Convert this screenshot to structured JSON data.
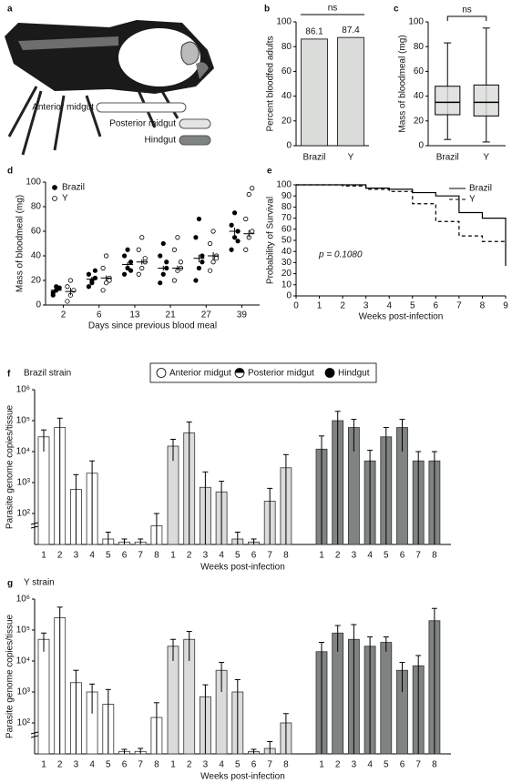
{
  "illustration": {
    "panel_label": "a",
    "labels": [
      "Anterior midgut",
      "Posterior midgut",
      "Hindgut"
    ]
  },
  "chart_data": [
    {
      "panel_label": "b",
      "type": "bar",
      "ylabel": "Percent bloodfed adults",
      "categories": [
        "Brazil",
        "Y"
      ],
      "values": [
        86.1,
        87.4
      ],
      "color": "#d9dcd9",
      "ylim": [
        0,
        100
      ],
      "yticks": [
        0,
        20,
        40,
        60,
        80,
        100
      ],
      "annotation": "ns"
    },
    {
      "panel_label": "c",
      "type": "box",
      "ylabel": "Mass of bloodmeal (mg)",
      "categories": [
        "Brazil",
        "Y"
      ],
      "values": [
        {
          "min": 5,
          "q1": 25,
          "median": 35,
          "q3": 48,
          "max": 83
        },
        {
          "min": 3,
          "q1": 24,
          "median": 35,
          "q3": 49,
          "max": 95
        }
      ],
      "color": "#d9dcd9",
      "ylim": [
        0,
        100
      ],
      "yticks": [
        0,
        20,
        40,
        60,
        80,
        100
      ],
      "annotation": "ns"
    },
    {
      "panel_label": "d",
      "type": "dot",
      "ylabel": "Mass of bloodmeal (mg)",
      "xlabel": "Days since previous blood meal",
      "categories": [
        "2",
        "6",
        "13",
        "21",
        "27",
        "39"
      ],
      "ylim": [
        0,
        100
      ],
      "yticks": [
        0,
        20,
        40,
        60,
        80,
        100
      ],
      "legend": "upper left",
      "series": [
        {
          "name": "Brazil",
          "marker": "filled",
          "values": [
            12,
            21,
            33,
            30,
            38,
            60
          ],
          "errors": [
            2,
            2,
            2,
            2,
            3,
            3
          ],
          "points": [
            [
              8,
              12,
              14,
              10,
              15
            ],
            [
              15,
              18,
              22,
              25,
              20,
              28
            ],
            [
              25,
              30,
              35,
              40,
              45,
              28
            ],
            [
              18,
              25,
              30,
              40,
              50,
              35
            ],
            [
              20,
              30,
              40,
              55,
              70,
              35
            ],
            [
              45,
              55,
              60,
              65,
              75,
              52
            ]
          ]
        },
        {
          "name": "Y",
          "marker": "open",
          "values": [
            11,
            22,
            35,
            30,
            40,
            58
          ],
          "errors": [
            3,
            2,
            2,
            2,
            3,
            3
          ],
          "points": [
            [
              3,
              8,
              12,
              15,
              20
            ],
            [
              12,
              18,
              22,
              30,
              40,
              20
            ],
            [
              25,
              30,
              38,
              45,
              55,
              35
            ],
            [
              20,
              28,
              35,
              45,
              55,
              30
            ],
            [
              28,
              35,
              40,
              50,
              60,
              38
            ],
            [
              45,
              55,
              60,
              70,
              90,
              95
            ]
          ]
        }
      ]
    },
    {
      "panel_label": "e",
      "type": "step",
      "ylabel": "Probability of Survival",
      "xlabel": "Weeks post-infection",
      "x": [
        0,
        1,
        2,
        3,
        4,
        5,
        6,
        7,
        8,
        9
      ],
      "xlim": [
        0,
        9
      ],
      "xticks": [
        0,
        1,
        2,
        3,
        4,
        5,
        6,
        7,
        8,
        9
      ],
      "ylim": [
        0,
        100
      ],
      "yticks": [
        0,
        10,
        20,
        30,
        40,
        50,
        60,
        70,
        80,
        90,
        100
      ],
      "legend": "upper right",
      "annotation": "p = 0.1080",
      "series": [
        {
          "name": "Brazil",
          "line_style": "solid",
          "values": [
            100,
            100,
            100,
            97,
            96,
            93,
            90,
            75,
            70,
            27
          ]
        },
        {
          "name": "Y",
          "line_style": "dashed",
          "values": [
            100,
            100,
            99,
            96,
            94,
            83,
            67,
            54,
            49,
            48
          ]
        }
      ]
    },
    {
      "panel_label": "f",
      "type": "log_bar",
      "title": "Brazil strain",
      "ylabel": "Parasite genome copies/tissue",
      "xlabel": "Weeks post-infection",
      "categories": [
        "1",
        "2",
        "3",
        "4",
        "5",
        "6",
        "7",
        "8"
      ],
      "log_scale": true,
      "ylim": [
        10,
        1000000
      ],
      "yticks": [
        {
          "value": 100,
          "label": "10²"
        },
        {
          "value": 1000,
          "label": "10³"
        },
        {
          "value": 10000,
          "label": "10⁴"
        },
        {
          "value": 100000,
          "label": "10⁵"
        },
        {
          "value": 1000000,
          "label": "10⁶"
        }
      ],
      "legend": true,
      "series": [
        {
          "name": "Anterior midgut",
          "marker": "open",
          "color": "#ffffff",
          "values": [
            30000,
            60000,
            600,
            2000,
            15,
            12,
            12,
            40
          ],
          "errors": [
            20000,
            60000,
            1200,
            3000,
            10,
            3,
            3,
            60
          ]
        },
        {
          "name": "Posterior midgut",
          "marker": "half",
          "color": "#d9dcd9",
          "values": [
            15000,
            40000,
            700,
            500,
            15,
            12,
            250,
            3000
          ],
          "errors": [
            10000,
            50000,
            1500,
            600,
            10,
            3,
            400,
            5000
          ]
        },
        {
          "name": "Hindgut",
          "marker": "filled",
          "color": "#7f8381",
          "values": [
            12000,
            100000,
            60000,
            5000,
            30000,
            60000,
            5000,
            5000
          ],
          "errors": [
            20000,
            100000,
            50000,
            6000,
            30000,
            50000,
            5000,
            5000
          ]
        }
      ]
    },
    {
      "panel_label": "g",
      "type": "log_bar",
      "title": "Y strain",
      "ylabel": "Parasite genome copies/tissue",
      "xlabel": "Weeks post-infection",
      "categories": [
        "1",
        "2",
        "3",
        "4",
        "5",
        "6",
        "7",
        "8"
      ],
      "log_scale": true,
      "ylim": [
        10,
        1000000
      ],
      "yticks": [
        {
          "value": 100,
          "label": "10²"
        },
        {
          "value": 1000,
          "label": "10³"
        },
        {
          "value": 10000,
          "label": "10⁴"
        },
        {
          "value": 100000,
          "label": "10⁵"
        },
        {
          "value": 1000000,
          "label": "10⁶"
        }
      ],
      "legend": false,
      "series": [
        {
          "name": "Anterior midgut",
          "marker": "open",
          "color": "#ffffff",
          "values": [
            50000,
            250000,
            2000,
            1000,
            400,
            12,
            12,
            150
          ],
          "errors": [
            30000,
            300000,
            3000,
            800,
            800,
            2,
            3,
            300
          ]
        },
        {
          "name": "Posterior midgut",
          "marker": "half",
          "color": "#d9dcd9",
          "values": [
            30000,
            50000,
            700,
            5000,
            1000,
            12,
            15,
            100
          ],
          "errors": [
            20000,
            40000,
            1000,
            4000,
            1500,
            2,
            10,
            100
          ]
        },
        {
          "name": "Hindgut",
          "marker": "filled",
          "color": "#7f8381",
          "values": [
            20000,
            80000,
            50000,
            30000,
            40000,
            5000,
            7000,
            200000
          ],
          "errors": [
            20000,
            60000,
            100000,
            30000,
            20000,
            4000,
            8000,
            300000
          ]
        }
      ]
    }
  ]
}
